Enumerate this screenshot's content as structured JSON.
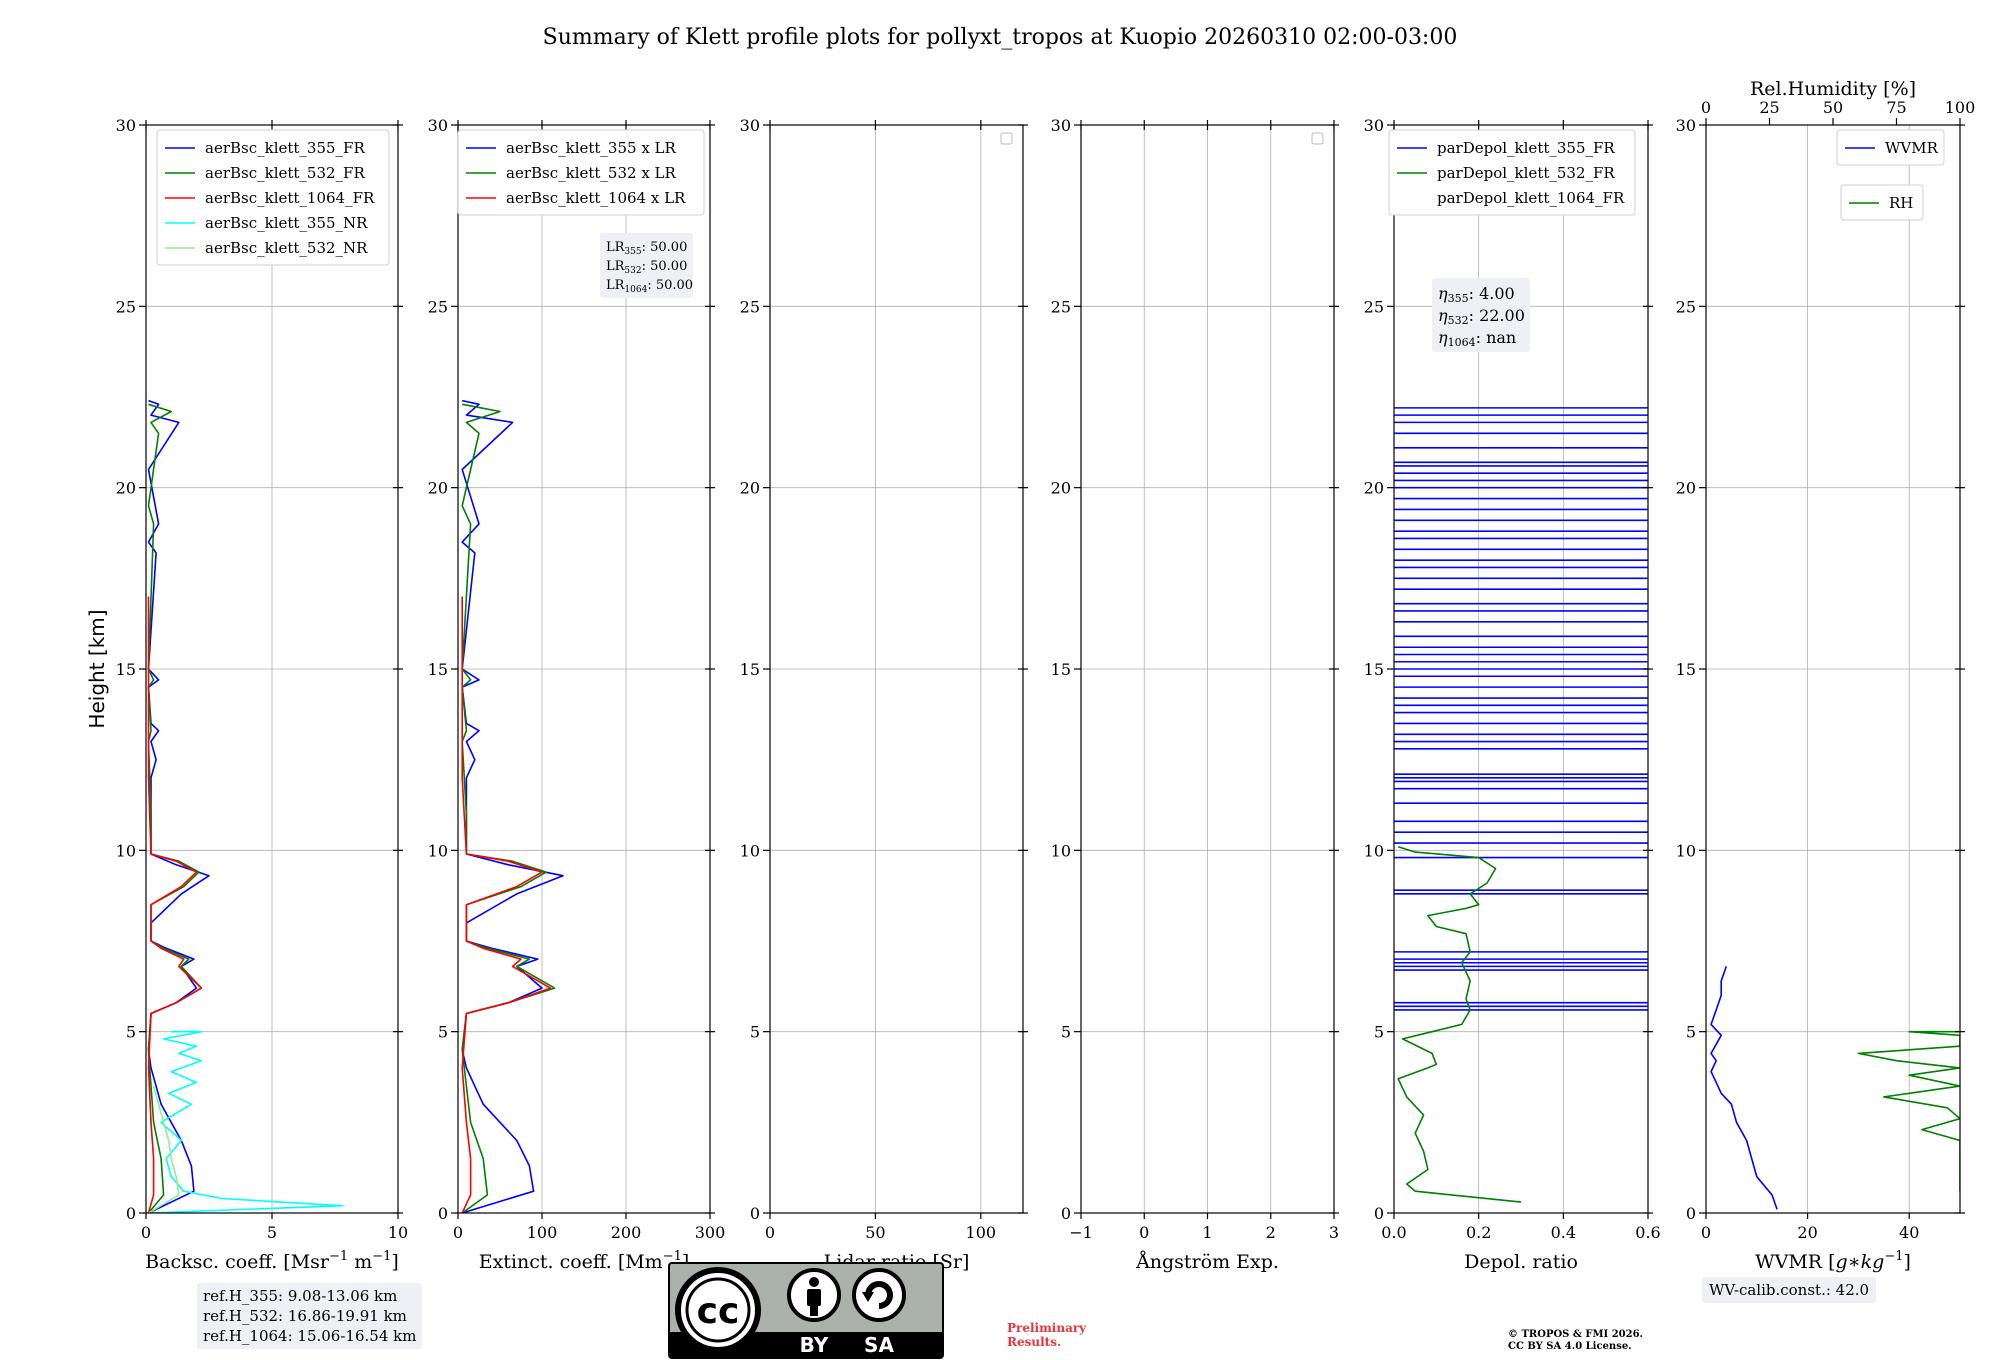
{
  "title": "Summary of Klett profile plots for pollyxt_tropos at Kuopio 20260310 02:00-03:00",
  "chart_data": [
    {
      "type": "line",
      "name": "backscatter",
      "xlabel": "Backsc. coeff. [Msr$^{-1}$ m$^{-1}$]",
      "xlabel_main": "Backsc. coeff. [Msr",
      "xlabel_sup1": "−1",
      "xlabel_mid": " m",
      "xlabel_sup2": "−1",
      "xlabel_end": "]",
      "ylabel": "Height [km]",
      "xlim": [
        0,
        10
      ],
      "ylim": [
        0,
        30
      ],
      "xticks": [
        0,
        5,
        10
      ],
      "yticks": [
        0,
        5,
        10,
        15,
        20,
        25,
        30
      ],
      "legend": [
        "aerBsc_klett_355_FR",
        "aerBsc_klett_532_FR",
        "aerBsc_klett_1064_FR",
        "aerBsc_klett_355_NR",
        "aerBsc_klett_532_NR"
      ],
      "series": [
        {
          "name": "aerBsc_klett_355_FR",
          "color": "#0000ff",
          "x": [
            0.1,
            1.9,
            1.8,
            1.4,
            0.6,
            0.4,
            0.2,
            0.1,
            0.2,
            1.2,
            2.0,
            1.4,
            1.9,
            0.8,
            0.2,
            0.2,
            1.4,
            2.5,
            1.2,
            0.2,
            0.2,
            0.2,
            0.4,
            0.2,
            0.5,
            0.2,
            0.1,
            0.5,
            0.1,
            0.4,
            0.1,
            0.5,
            0.1,
            1.3,
            0.2,
            0.5,
            0.1
          ],
          "y": [
            0.0,
            0.6,
            1.3,
            2.0,
            3.0,
            3.5,
            4.0,
            4.5,
            5.5,
            5.8,
            6.2,
            6.8,
            7.0,
            7.3,
            7.5,
            8.0,
            8.8,
            9.3,
            9.6,
            9.9,
            10.5,
            12.0,
            12.5,
            13.0,
            13.3,
            13.5,
            14.5,
            14.7,
            15.0,
            18.2,
            18.5,
            19.0,
            20.5,
            21.8,
            22.0,
            22.3,
            22.4
          ]
        },
        {
          "name": "aerBsc_klett_532_FR",
          "color": "#008000",
          "x": [
            0.1,
            0.7,
            0.6,
            0.3,
            0.2,
            0.1,
            0.2,
            1.2,
            2.2,
            1.4,
            1.7,
            0.7,
            0.2,
            0.2,
            1.5,
            2.1,
            1.3,
            0.2,
            0.2,
            0.1,
            0.2,
            0.1,
            0.3,
            0.1,
            0.3,
            0.1,
            0.5,
            0.2,
            1.0,
            0.1
          ],
          "y": [
            0.0,
            0.5,
            1.5,
            2.5,
            3.5,
            4.5,
            5.5,
            5.8,
            6.2,
            6.8,
            7.0,
            7.3,
            7.5,
            8.5,
            9.0,
            9.4,
            9.7,
            9.9,
            11.0,
            13.0,
            13.3,
            14.5,
            14.7,
            15.0,
            19.0,
            19.5,
            21.5,
            21.8,
            22.1,
            22.3
          ]
        },
        {
          "name": "aerBsc_klett_1064_FR",
          "color": "#ff0000",
          "x": [
            0.1,
            0.3,
            0.3,
            0.2,
            0.1,
            0.2,
            1.2,
            2.2,
            1.3,
            1.5,
            0.6,
            0.2,
            0.2,
            1.4,
            2.0,
            1.2,
            0.2,
            0.1,
            0.1
          ],
          "y": [
            0.0,
            0.5,
            1.5,
            2.5,
            4.0,
            5.5,
            5.8,
            6.2,
            6.8,
            7.0,
            7.3,
            7.5,
            8.5,
            9.0,
            9.4,
            9.7,
            9.9,
            12.0,
            17.0
          ]
        },
        {
          "name": "aerBsc_klett_355_NR",
          "color": "#00ffff",
          "x": [
            0.1,
            7.8,
            3.0,
            1.5,
            1.0,
            0.8,
            1.4,
            0.6,
            1.8,
            0.9,
            2.0,
            1.0,
            2.2,
            1.3,
            2.0,
            0.7,
            2.2,
            1.0
          ],
          "y": [
            0.0,
            0.2,
            0.4,
            0.6,
            1.0,
            1.5,
            2.0,
            2.5,
            3.0,
            3.3,
            3.6,
            3.9,
            4.2,
            4.4,
            4.6,
            4.8,
            5.0,
            5.0
          ]
        },
        {
          "name": "aerBsc_klett_532_NR",
          "color": "#90ee90",
          "x": [
            0.1,
            1.3,
            1.2,
            1.0,
            0.9,
            0.7,
            0.5,
            0.3
          ],
          "y": [
            0.0,
            0.5,
            1.0,
            1.5,
            2.0,
            2.5,
            3.0,
            3.5
          ]
        }
      ],
      "annotation": [
        "ref.H_355: 9.08-13.06 km",
        "ref.H_532: 16.86-19.91 km",
        "ref.H_1064: 15.06-16.54 km"
      ]
    },
    {
      "type": "line",
      "name": "extinction",
      "xlabel": "Extinct. coeff. [Mm$^{-1}$]",
      "xlabel_main": "Extinct. coeff. [Mm",
      "xlabel_sup": "−1",
      "xlabel_end": "]",
      "xlim": [
        0,
        300
      ],
      "ylim": [
        0,
        30
      ],
      "xticks": [
        0,
        100,
        200,
        300
      ],
      "yticks": [
        0,
        5,
        10,
        15,
        20,
        25,
        30
      ],
      "legend": [
        "aerBsc_klett_355 x LR",
        "aerBsc_klett_532 x LR",
        "aerBsc_klett_1064 x LR"
      ],
      "lr_box": [
        {
          "sub": "355",
          "value": ": 50.00"
        },
        {
          "sub": "532",
          "value": ": 50.00"
        },
        {
          "sub": "1064",
          "value": ": 50.00"
        }
      ],
      "series": [
        {
          "name": "aerBsc_klett_355 x LR",
          "color": "#0000ff",
          "x": [
            5,
            90,
            85,
            70,
            30,
            20,
            10,
            5,
            10,
            60,
            100,
            70,
            95,
            40,
            10,
            10,
            70,
            125,
            60,
            10,
            10,
            10,
            20,
            10,
            25,
            10,
            5,
            25,
            5,
            20,
            5,
            25,
            5,
            65,
            10,
            25,
            5
          ],
          "y": [
            0.0,
            0.6,
            1.3,
            2.0,
            3.0,
            3.5,
            4.0,
            4.5,
            5.5,
            5.8,
            6.2,
            6.8,
            7.0,
            7.3,
            7.5,
            8.0,
            8.8,
            9.3,
            9.6,
            9.9,
            10.5,
            12.0,
            12.5,
            13.0,
            13.3,
            13.5,
            14.5,
            14.7,
            15.0,
            18.2,
            18.5,
            19.0,
            20.5,
            21.8,
            22.0,
            22.3,
            22.4
          ]
        },
        {
          "name": "aerBsc_klett_532 x LR",
          "color": "#008000",
          "x": [
            5,
            35,
            30,
            15,
            10,
            5,
            10,
            60,
            115,
            70,
            85,
            35,
            10,
            10,
            75,
            105,
            65,
            10,
            10,
            5,
            10,
            5,
            15,
            5,
            15,
            5,
            25,
            10,
            50,
            5
          ],
          "y": [
            0.0,
            0.5,
            1.5,
            2.5,
            3.5,
            4.5,
            5.5,
            5.8,
            6.2,
            6.8,
            7.0,
            7.3,
            7.5,
            8.5,
            9.0,
            9.4,
            9.7,
            9.9,
            11.0,
            13.0,
            13.3,
            14.5,
            14.7,
            15.0,
            19.0,
            19.5,
            21.5,
            21.8,
            22.1,
            22.3
          ]
        },
        {
          "name": "aerBsc_klett_1064 x LR",
          "color": "#ff0000",
          "x": [
            5,
            15,
            15,
            10,
            5,
            10,
            60,
            110,
            65,
            75,
            30,
            10,
            10,
            70,
            100,
            60,
            10,
            5,
            5
          ],
          "y": [
            0.0,
            0.5,
            1.5,
            2.5,
            4.0,
            5.5,
            5.8,
            6.2,
            6.8,
            7.0,
            7.3,
            7.5,
            8.5,
            9.0,
            9.4,
            9.7,
            9.9,
            12.0,
            17.0
          ]
        }
      ]
    },
    {
      "type": "line",
      "name": "lidar-ratio",
      "xlabel": "Lidar ratio [Sr]",
      "xlim": [
        0,
        120
      ],
      "ylim": [
        0,
        30
      ],
      "xticks": [
        0,
        50,
        100
      ],
      "yticks": [
        0,
        5,
        10,
        15,
        20,
        25,
        30
      ],
      "series": []
    },
    {
      "type": "line",
      "name": "angstrom",
      "xlabel": "Ångström Exp.",
      "xlim": [
        -1,
        3
      ],
      "ylim": [
        0,
        30
      ],
      "xticks": [
        -1,
        0,
        1,
        2,
        3
      ],
      "xtick_labels": [
        "−1",
        "0",
        "1",
        "2",
        "3"
      ],
      "yticks": [
        0,
        5,
        10,
        15,
        20,
        25,
        30
      ],
      "series": []
    },
    {
      "type": "line",
      "name": "depol",
      "xlabel": "Depol. ratio",
      "xlim": [
        0,
        0.6
      ],
      "ylim": [
        0,
        30
      ],
      "xticks": [
        0.0,
        0.2,
        0.4,
        0.6
      ],
      "xtick_labels": [
        "0.0",
        "0.2",
        "0.4",
        "0.6"
      ],
      "yticks": [
        0,
        5,
        10,
        15,
        20,
        25,
        30
      ],
      "legend": [
        "parDepol_klett_355_FR",
        "parDepol_klett_532_FR",
        "parDepol_klett_1064_FR"
      ],
      "eta_box": [
        {
          "sub": "355",
          "value": ": 4.00"
        },
        {
          "sub": "532",
          "value": ": 22.00"
        },
        {
          "sub": "1064",
          "value": ": nan"
        }
      ],
      "series": [
        {
          "name": "parDepol_klett_355_FR",
          "color": "#0000ff",
          "x_range": [
            0.0,
            0.6
          ],
          "y_lines": [
            5.6,
            5.7,
            5.8,
            6.7,
            6.8,
            6.9,
            7.0,
            7.2,
            8.8,
            8.9,
            9.8,
            10.2,
            10.5,
            10.8,
            11.3,
            11.7,
            11.9,
            12.0,
            12.1,
            12.8,
            13.0,
            13.2,
            13.5,
            13.8,
            14.0,
            14.2,
            14.5,
            14.8,
            15.0,
            15.2,
            15.4,
            15.6,
            15.9,
            16.3,
            16.6,
            16.8,
            17.2,
            17.5,
            17.8,
            18.0,
            18.3,
            18.6,
            18.8,
            19.1,
            19.4,
            19.7,
            20.0,
            20.2,
            20.4,
            20.6,
            20.7,
            21.1,
            21.5,
            21.8,
            22.0,
            22.2
          ]
        },
        {
          "name": "parDepol_klett_532_FR",
          "color": "#008000",
          "x": [
            0.3,
            0.05,
            0.03,
            0.08,
            0.07,
            0.05,
            0.07,
            0.03,
            0.01,
            0.08,
            0.1,
            0.09,
            0.02,
            0.09,
            0.16,
            0.18,
            0.17,
            0.18,
            0.16,
            0.18,
            0.17,
            0.1,
            0.08,
            0.17,
            0.2,
            0.18,
            0.22,
            0.24,
            0.2,
            0.05,
            0.01
          ],
          "y": [
            0.3,
            0.6,
            0.8,
            1.2,
            1.7,
            2.2,
            2.7,
            3.2,
            3.7,
            4.0,
            4.1,
            4.4,
            4.8,
            5.0,
            5.2,
            5.6,
            5.9,
            6.4,
            6.9,
            7.2,
            7.7,
            7.9,
            8.2,
            8.4,
            8.5,
            8.8,
            9.1,
            9.5,
            9.8,
            9.95,
            10.1
          ]
        }
      ]
    },
    {
      "type": "line",
      "name": "water-vapor",
      "xlabel": "WVMR [g*kg$^{-1}$]",
      "xlabel_main": "WVMR [",
      "xlabel_italic": "g∗kg",
      "xlabel_sup": "−1",
      "xlabel_end": "]",
      "top_label": "Rel.Humidity [%]",
      "xlim": [
        0,
        50
      ],
      "ylim": [
        0,
        30
      ],
      "xticks": [
        0,
        20,
        40
      ],
      "yticks": [
        0,
        5,
        10,
        15,
        20,
        25,
        30
      ],
      "top_xlim": [
        0,
        100
      ],
      "top_xticks": [
        0,
        25,
        50,
        75,
        100
      ],
      "legend": [
        "WVMR",
        "RH"
      ],
      "series": [
        {
          "name": "WVMR",
          "color": "#0000ff",
          "x": [
            14,
            13,
            10,
            9,
            8,
            6,
            5,
            3,
            2,
            1,
            2,
            1,
            3,
            1,
            2,
            3,
            3,
            4
          ],
          "y": [
            0.1,
            0.5,
            1.0,
            1.5,
            2.0,
            2.5,
            3.0,
            3.3,
            3.6,
            3.9,
            4.2,
            4.4,
            4.9,
            5.2,
            5.6,
            6.0,
            6.4,
            6.8
          ]
        },
        {
          "name": "RH",
          "color": "#008000",
          "x": [
            100,
            100,
            85,
            100,
            95,
            70,
            100,
            80,
            100,
            75,
            60,
            100,
            100,
            80,
            100
          ],
          "y": [
            0.6,
            2.0,
            2.3,
            2.6,
            2.9,
            3.2,
            3.5,
            3.8,
            4.0,
            4.2,
            4.4,
            4.6,
            4.9,
            5.0,
            5.0
          ]
        }
      ],
      "annotation": "WV-calib.const.: 42.0"
    }
  ],
  "footer": {
    "license_by": "BY",
    "license_sa": "SA",
    "preliminary_1": "Preliminary",
    "preliminary_2": "Results.",
    "copyright_1": "© TROPOS & FMI 2026.",
    "copyright_2": "CC BY SA 4.0 License."
  }
}
